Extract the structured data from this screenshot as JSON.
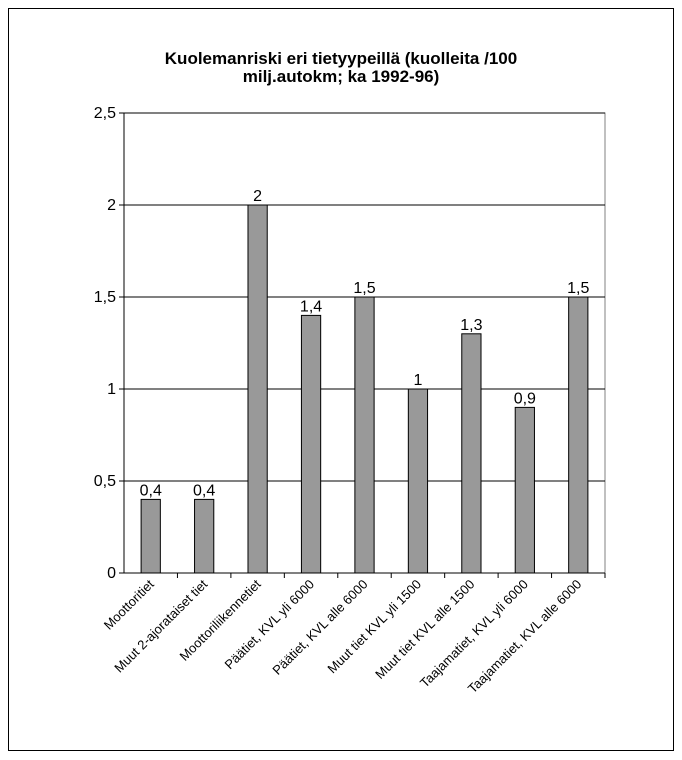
{
  "chart_data": {
    "type": "bar",
    "title": "Kuolemanriski eri tietyypeillä (kuolleita /100 milj.autokm; ka 1992-96)",
    "categories": [
      "Moottoritiet",
      "Muut 2-ajorataiset tiet",
      "Moottoriliikennetiet",
      "Päätiet, KVL yli 6000",
      "Päätiet, KVL alle 6000",
      "Muut tiet KVL yli 1500",
      "Muut tiet KVL alle 1500",
      "Taajamatiet, KVL yli 6000",
      "Taajamatiet, KVL alle 6000"
    ],
    "values": [
      0.4,
      0.4,
      2,
      1.4,
      1.5,
      1,
      1.3,
      0.9,
      1.5
    ],
    "value_labels": [
      "0,4",
      "0,4",
      "2",
      "1,4",
      "1,5",
      "1",
      "1,3",
      "0,9",
      "1,5"
    ],
    "color": "#999999",
    "ylim": [
      0,
      2.5
    ],
    "yticks": [
      0,
      {
        "value": 0.5,
        "label": "0,5"
      },
      1,
      {
        "value": 1.5,
        "label": "1,5"
      },
      2,
      {
        "value": 2.5,
        "label": "2,5"
      }
    ],
    "grid": true
  }
}
